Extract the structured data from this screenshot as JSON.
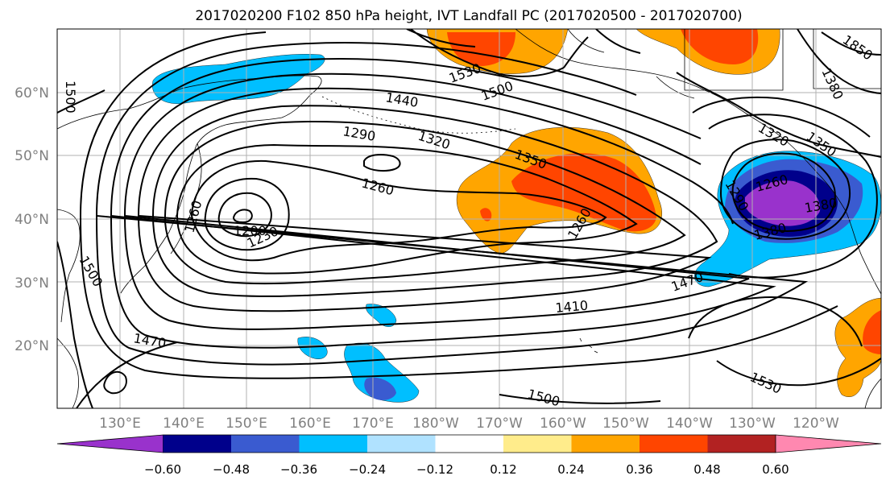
{
  "title": "2017020200 F102 850 hPa height, IVT Landfall PC (2017020500 - 2017020700)",
  "lat_labels": [
    "60°N",
    "50°N",
    "40°N",
    "30°N",
    "20°N"
  ],
  "lon_labels": [
    "130°E",
    "140°E",
    "150°E",
    "160°E",
    "170°E",
    "180°W",
    "170°W",
    "160°W",
    "150°W",
    "140°W",
    "130°W",
    "120°W"
  ],
  "contour_labels": [
    {
      "text": "1500"
    },
    {
      "text": "1530"
    },
    {
      "text": "1500"
    },
    {
      "text": "1440"
    },
    {
      "text": "1290"
    },
    {
      "text": "1320"
    },
    {
      "text": "1350"
    },
    {
      "text": "1260"
    },
    {
      "text": "1260"
    },
    {
      "text": "1200"
    },
    {
      "text": "1230"
    },
    {
      "text": "1260"
    },
    {
      "text": "1500"
    },
    {
      "text": "1470"
    },
    {
      "text": "1410"
    },
    {
      "text": "1470"
    },
    {
      "text": "1500"
    },
    {
      "text": "1530"
    },
    {
      "text": "1380"
    },
    {
      "text": "1350"
    },
    {
      "text": "1320"
    },
    {
      "text": "1290"
    },
    {
      "text": "1260"
    },
    {
      "text": "1380"
    },
    {
      "text": "1850"
    },
    {
      "text": "1380"
    }
  ],
  "colorbar": {
    "colors": [
      "#9932cc",
      "#00008b",
      "#3a5bd0",
      "#00bfff",
      "#b0e2ff",
      "#ffffff",
      "#ffec8b",
      "#ffa500",
      "#ff4500",
      "#b22222",
      "#ff88b0"
    ],
    "tick_labels": [
      "−0.60",
      "−0.48",
      "−0.36",
      "−0.24",
      "−0.12",
      "0.12",
      "0.24",
      "0.36",
      "0.48",
      "0.60"
    ]
  },
  "palette": {
    "pos1": "#ffec8b",
    "pos2": "#ffa500",
    "pos3": "#ff4500",
    "neg1": "#b0e2ff",
    "neg2": "#00bfff",
    "neg3": "#3a5bd0",
    "neg4": "#00008b",
    "neg5": "#9932cc",
    "grid": "#b0b0b0",
    "tick_text": "#808080"
  }
}
